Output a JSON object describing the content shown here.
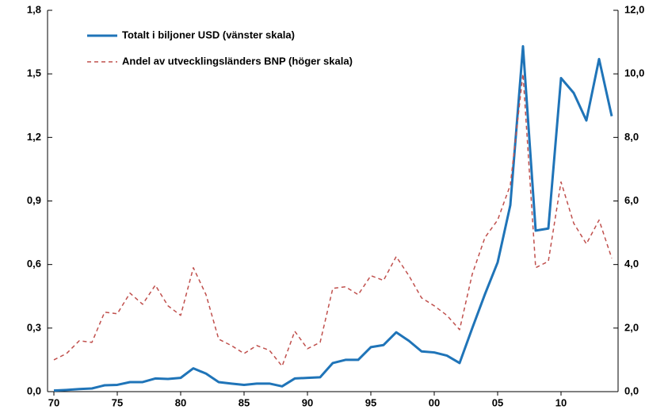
{
  "chart_data": {
    "type": "line",
    "x": [
      1970,
      1971,
      1972,
      1973,
      1974,
      1975,
      1976,
      1977,
      1978,
      1979,
      1980,
      1981,
      1982,
      1983,
      1984,
      1985,
      1986,
      1987,
      1988,
      1989,
      1990,
      1991,
      1992,
      1993,
      1994,
      1995,
      1996,
      1997,
      1998,
      1999,
      2000,
      2001,
      2002,
      2003,
      2004,
      2005,
      2006,
      2007,
      2008,
      2009,
      2010,
      2011,
      2012,
      2013,
      2014
    ],
    "series": [
      {
        "name": "Totalt i biljoner USD (vänster skala)",
        "color": "#1f74b8",
        "axis": "y",
        "dash": false,
        "values": [
          0.005,
          0.008,
          0.012,
          0.015,
          0.03,
          0.032,
          0.045,
          0.045,
          0.062,
          0.06,
          0.065,
          0.11,
          0.085,
          0.045,
          0.038,
          0.032,
          0.038,
          0.038,
          0.025,
          0.062,
          0.065,
          0.068,
          0.135,
          0.15,
          0.15,
          0.21,
          0.22,
          0.28,
          0.24,
          0.19,
          0.185,
          0.17,
          0.135,
          0.3,
          0.46,
          0.61,
          0.88,
          1.63,
          0.76,
          0.77,
          1.48,
          1.41,
          1.28,
          1.57,
          1.3
        ]
      },
      {
        "name": "Andel av utvecklingsländers BNP (höger skala)",
        "color": "#c0504d",
        "axis": "y2",
        "dash": true,
        "values": [
          1.0,
          1.2,
          1.6,
          1.55,
          2.5,
          2.45,
          3.1,
          2.75,
          3.35,
          2.7,
          2.4,
          3.9,
          3.05,
          1.65,
          1.45,
          1.2,
          1.45,
          1.3,
          0.8,
          1.9,
          1.35,
          1.55,
          3.25,
          3.3,
          3.05,
          3.65,
          3.5,
          4.25,
          3.65,
          2.95,
          2.7,
          2.4,
          1.95,
          3.7,
          4.85,
          5.4,
          6.5,
          10.0,
          3.9,
          4.1,
          6.6,
          5.3,
          4.65,
          5.4,
          4.2
        ]
      }
    ],
    "xlim": [
      1969.5,
      2014.5
    ],
    "xticks": [
      {
        "value": 1970,
        "label": "70"
      },
      {
        "value": 1975,
        "label": "75"
      },
      {
        "value": 1980,
        "label": "80"
      },
      {
        "value": 1985,
        "label": "85"
      },
      {
        "value": 1990,
        "label": "90"
      },
      {
        "value": 1995,
        "label": "95"
      },
      {
        "value": 2000,
        "label": "00"
      },
      {
        "value": 2005,
        "label": "05"
      },
      {
        "value": 2010,
        "label": "10"
      }
    ],
    "ylim": [
      0,
      1.8
    ],
    "yticks": [
      {
        "value": 0,
        "label": "0,0"
      },
      {
        "value": 0.3,
        "label": "0,3"
      },
      {
        "value": 0.6,
        "label": "0,6"
      },
      {
        "value": 0.9,
        "label": "0,9"
      },
      {
        "value": 1.2,
        "label": "1,2"
      },
      {
        "value": 1.5,
        "label": "1,5"
      },
      {
        "value": 1.8,
        "label": "1,8"
      }
    ],
    "y2lim": [
      0,
      12
    ],
    "y2ticks": [
      {
        "value": 0,
        "label": "0,0"
      },
      {
        "value": 2,
        "label": "2,0"
      },
      {
        "value": 4,
        "label": "4,0"
      },
      {
        "value": 6,
        "label": "6,0"
      },
      {
        "value": 8,
        "label": "8,0"
      },
      {
        "value": 10,
        "label": "10,0"
      },
      {
        "value": 12,
        "label": "12,0"
      }
    ]
  }
}
